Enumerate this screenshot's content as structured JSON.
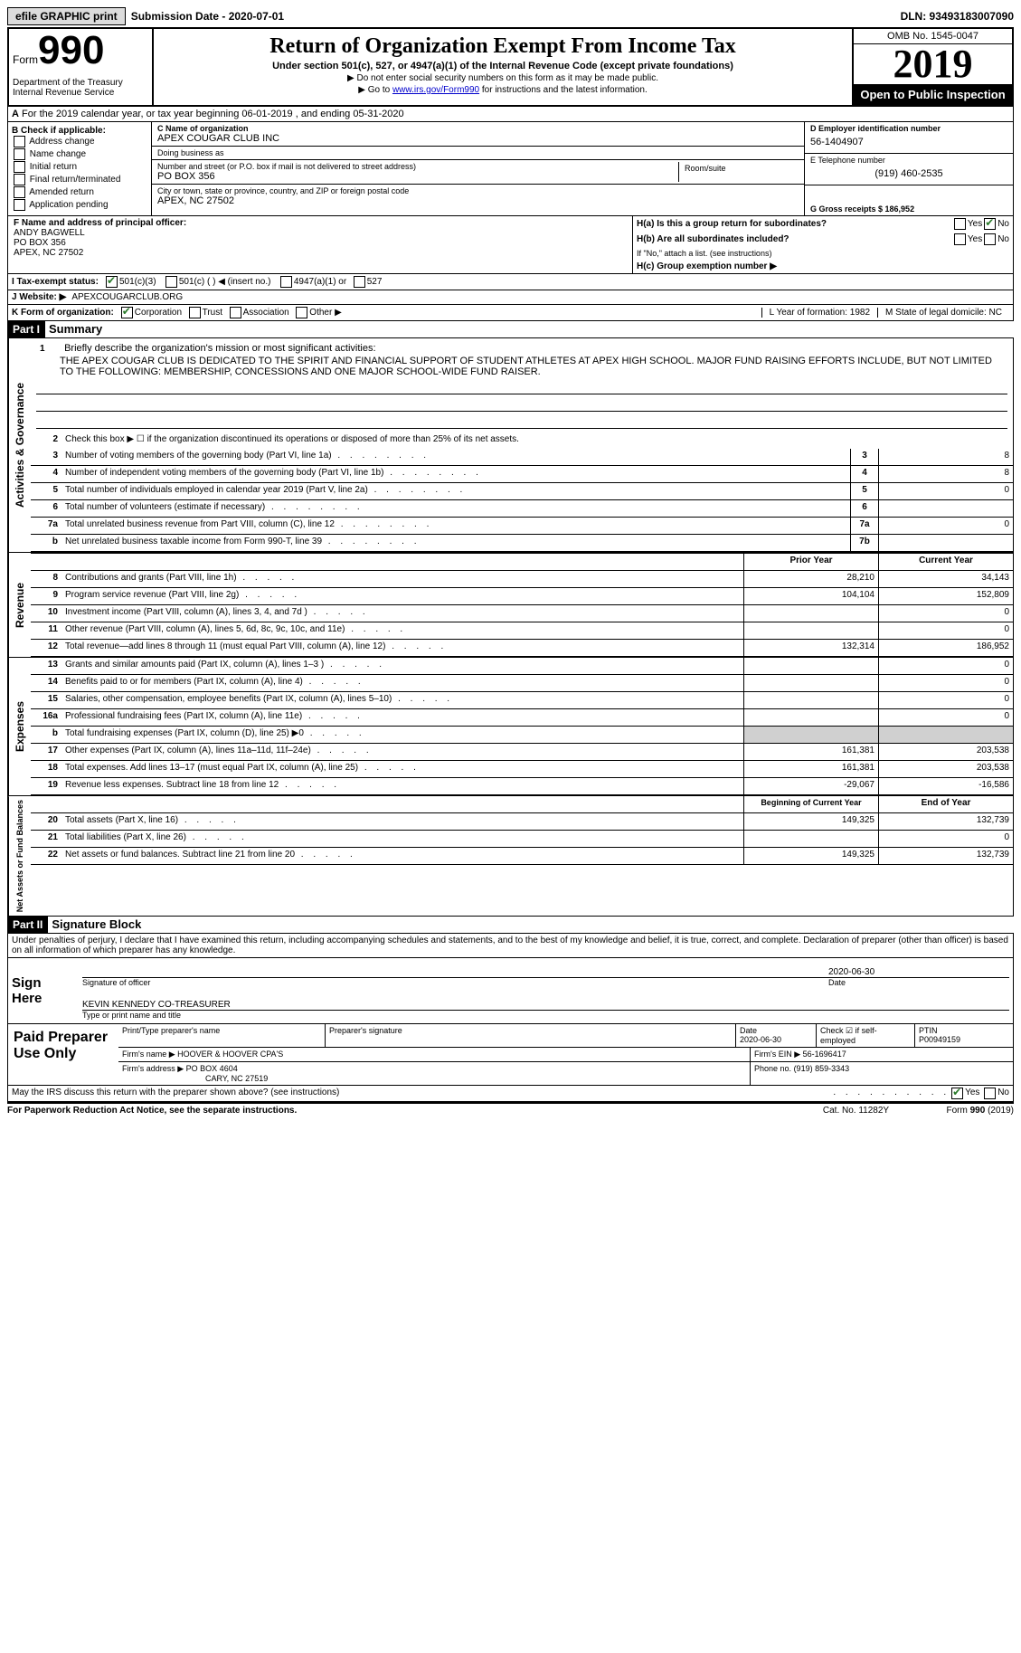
{
  "topbar": {
    "efile_label": "efile GRAPHIC print",
    "submission_label": "Submission Date - 2020-07-01",
    "dln": "DLN: 93493183007090"
  },
  "header": {
    "form_word": "Form",
    "form_num": "990",
    "dept": "Department of the Treasury",
    "irs": "Internal Revenue Service",
    "title": "Return of Organization Exempt From Income Tax",
    "subtitle": "Under section 501(c), 527, or 4947(a)(1) of the Internal Revenue Code (except private foundations)",
    "note1": "▶ Do not enter social security numbers on this form as it may be made public.",
    "note2_pre": "▶ Go to ",
    "note2_link": "www.irs.gov/Form990",
    "note2_post": " for instructions and the latest information.",
    "omb": "OMB No. 1545-0047",
    "year": "2019",
    "inspection": "Open to Public Inspection"
  },
  "lineA": "For the 2019 calendar year, or tax year beginning 06-01-2019   , and ending 05-31-2020",
  "sectionB": {
    "title": "B Check if applicable:",
    "opts": [
      "Address change",
      "Name change",
      "Initial return",
      "Final return/terminated",
      "Amended return",
      "Application pending"
    ]
  },
  "sectionC": {
    "name_lbl": "C Name of organization",
    "name": "APEX COUGAR CLUB INC",
    "dba_lbl": "Doing business as",
    "dba": "",
    "addr_lbl": "Number and street (or P.O. box if mail is not delivered to street address)",
    "room_lbl": "Room/suite",
    "addr": "PO BOX 356",
    "city_lbl": "City or town, state or province, country, and ZIP or foreign postal code",
    "city": "APEX, NC  27502"
  },
  "sectionD": {
    "lbl": "D Employer identification number",
    "val": "56-1404907"
  },
  "sectionE": {
    "lbl": "E Telephone number",
    "val": "(919) 460-2535"
  },
  "sectionG": {
    "lbl": "G Gross receipts $ 186,952"
  },
  "sectionF": {
    "lbl": "F  Name and address of principal officer:",
    "name": "ANDY BAGWELL",
    "addr1": "PO BOX 356",
    "addr2": "APEX, NC  27502"
  },
  "sectionH": {
    "a_lbl": "H(a)  Is this a group return for subordinates?",
    "b_lbl": "H(b)  Are all subordinates included?",
    "b_note": "If \"No,\" attach a list. (see instructions)",
    "c_lbl": "H(c)  Group exemption number ▶"
  },
  "sectionI": {
    "lbl": "I   Tax-exempt status:",
    "opts": [
      "501(c)(3)",
      "501(c) (  ) ◀ (insert no.)",
      "4947(a)(1) or",
      "527"
    ]
  },
  "sectionJ": {
    "lbl": "J   Website: ▶",
    "val": "APEXCOUGARCLUB.ORG"
  },
  "sectionK": {
    "lbl": "K Form of organization:",
    "opts": [
      "Corporation",
      "Trust",
      "Association",
      "Other ▶"
    ]
  },
  "sectionL": "L Year of formation: 1982",
  "sectionM": "M State of legal domicile: NC",
  "part1": {
    "label": "Part I",
    "title": "Summary",
    "l1_lbl": "Briefly describe the organization's mission or most significant activities:",
    "mission": "THE APEX COUGAR CLUB IS DEDICATED TO THE SPIRIT AND FINANCIAL SUPPORT OF STUDENT ATHLETES AT APEX HIGH SCHOOL. MAJOR FUND RAISING EFFORTS INCLUDE, BUT NOT LIMITED TO THE FOLLOWING: MEMBERSHIP, CONCESSIONS AND ONE MAJOR SCHOOL-WIDE FUND RAISER.",
    "l2": "Check this box ▶ ☐  if the organization discontinued its operations or disposed of more than 25% of its net assets.",
    "lines_single": [
      {
        "n": "3",
        "d": "Number of voting members of the governing body (Part VI, line 1a)",
        "box": "3",
        "v": "8"
      },
      {
        "n": "4",
        "d": "Number of independent voting members of the governing body (Part VI, line 1b)",
        "box": "4",
        "v": "8"
      },
      {
        "n": "5",
        "d": "Total number of individuals employed in calendar year 2019 (Part V, line 2a)",
        "box": "5",
        "v": "0"
      },
      {
        "n": "6",
        "d": "Total number of volunteers (estimate if necessary)",
        "box": "6",
        "v": ""
      },
      {
        "n": "7a",
        "d": "Total unrelated business revenue from Part VIII, column (C), line 12",
        "box": "7a",
        "v": "0"
      },
      {
        "n": "b",
        "d": "Net unrelated business taxable income from Form 990-T, line 39",
        "box": "7b",
        "v": ""
      }
    ],
    "col_headers": {
      "prior": "Prior Year",
      "current": "Current Year"
    },
    "revenue": [
      {
        "n": "8",
        "d": "Contributions and grants (Part VIII, line 1h)",
        "p": "28,210",
        "c": "34,143"
      },
      {
        "n": "9",
        "d": "Program service revenue (Part VIII, line 2g)",
        "p": "104,104",
        "c": "152,809"
      },
      {
        "n": "10",
        "d": "Investment income (Part VIII, column (A), lines 3, 4, and 7d )",
        "p": "",
        "c": "0"
      },
      {
        "n": "11",
        "d": "Other revenue (Part VIII, column (A), lines 5, 6d, 8c, 9c, 10c, and 11e)",
        "p": "",
        "c": "0"
      },
      {
        "n": "12",
        "d": "Total revenue—add lines 8 through 11 (must equal Part VIII, column (A), line 12)",
        "p": "132,314",
        "c": "186,952"
      }
    ],
    "expenses": [
      {
        "n": "13",
        "d": "Grants and similar amounts paid (Part IX, column (A), lines 1–3 )",
        "p": "",
        "c": "0"
      },
      {
        "n": "14",
        "d": "Benefits paid to or for members (Part IX, column (A), line 4)",
        "p": "",
        "c": "0"
      },
      {
        "n": "15",
        "d": "Salaries, other compensation, employee benefits (Part IX, column (A), lines 5–10)",
        "p": "",
        "c": "0"
      },
      {
        "n": "16a",
        "d": "Professional fundraising fees (Part IX, column (A), line 11e)",
        "p": "",
        "c": "0"
      },
      {
        "n": "b",
        "d": "Total fundraising expenses (Part IX, column (D), line 25) ▶0",
        "p": "shade",
        "c": "shade"
      },
      {
        "n": "17",
        "d": "Other expenses (Part IX, column (A), lines 11a–11d, 11f–24e)",
        "p": "161,381",
        "c": "203,538"
      },
      {
        "n": "18",
        "d": "Total expenses. Add lines 13–17 (must equal Part IX, column (A), line 25)",
        "p": "161,381",
        "c": "203,538"
      },
      {
        "n": "19",
        "d": "Revenue less expenses. Subtract line 18 from line 12",
        "p": "-29,067",
        "c": "-16,586"
      }
    ],
    "bal_headers": {
      "b": "Beginning of Current Year",
      "e": "End of Year"
    },
    "balances": [
      {
        "n": "20",
        "d": "Total assets (Part X, line 16)",
        "p": "149,325",
        "c": "132,739"
      },
      {
        "n": "21",
        "d": "Total liabilities (Part X, line 26)",
        "p": "",
        "c": "0"
      },
      {
        "n": "22",
        "d": "Net assets or fund balances. Subtract line 21 from line 20",
        "p": "149,325",
        "c": "132,739"
      }
    ],
    "side_act": "Activities & Governance",
    "side_rev": "Revenue",
    "side_exp": "Expenses",
    "side_bal": "Net Assets or Fund Balances"
  },
  "part2": {
    "label": "Part II",
    "title": "Signature Block",
    "decl": "Under penalties of perjury, I declare that I have examined this return, including accompanying schedules and statements, and to the best of my knowledge and belief, it is true, correct, and complete. Declaration of preparer (other than officer) is based on all information of which preparer has any knowledge.",
    "sign_here": "Sign Here",
    "sig_of_officer": "Signature of officer",
    "sig_date": "2020-06-30",
    "date_lbl": "Date",
    "officer_name": "KEVIN KENNEDY CO-TREASURER",
    "name_title_lbl": "Type or print name and title",
    "paid_prep": "Paid Preparer Use Only",
    "prep_name_lbl": "Print/Type preparer's name",
    "prep_sig_lbl": "Preparer's signature",
    "prep_date_lbl": "Date",
    "prep_date": "2020-06-30",
    "prep_check_lbl": "Check ☑ if self-employed",
    "ptin_lbl": "PTIN",
    "ptin": "P00949159",
    "firm_name_lbl": "Firm's name   ▶",
    "firm_name": "HOOVER & HOOVER CPA'S",
    "firm_ein_lbl": "Firm's EIN ▶",
    "firm_ein": "56-1696417",
    "firm_addr_lbl": "Firm's address ▶",
    "firm_addr": "PO BOX 4604",
    "firm_city": "CARY, NC  27519",
    "phone_lbl": "Phone no.",
    "phone": "(919) 859-3343",
    "discuss": "May the IRS discuss this return with the preparer shown above? (see instructions)"
  },
  "footer": {
    "paperwork": "For Paperwork Reduction Act Notice, see the separate instructions.",
    "cat": "Cat. No. 11282Y",
    "form": "Form 990 (2019)"
  }
}
